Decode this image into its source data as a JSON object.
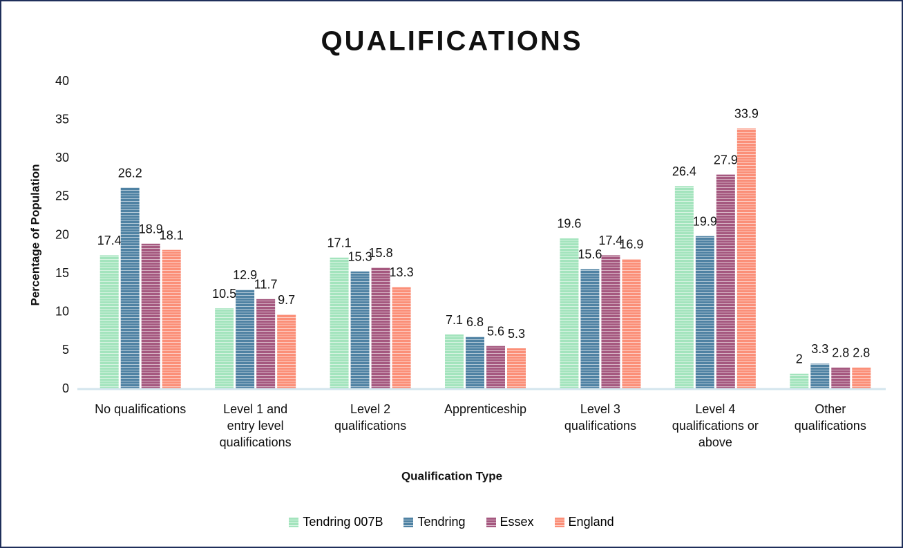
{
  "chart_data": {
    "type": "bar",
    "title": "QUALIFICATIONS",
    "x_label": "Qualification Type",
    "y_label": "Percentage of Population",
    "categories": [
      "No qualifications",
      "Level 1 and\nentry level\nqualifications",
      "Level 2\nqualifications",
      "Apprenticeship",
      "Level 3\nqualifications",
      "Level 4\nqualifications or\nabove",
      "Other\nqualifications"
    ],
    "series": [
      {
        "name": "Tendring 007B",
        "color": "#a3e4bd",
        "values": [
          17.4,
          10.5,
          17.1,
          7.1,
          19.6,
          26.4,
          2
        ]
      },
      {
        "name": "Tendring",
        "color": "#4f82a3",
        "values": [
          26.2,
          12.9,
          15.3,
          6.8,
          15.6,
          19.9,
          3.3
        ]
      },
      {
        "name": "Essex",
        "color": "#a5587f",
        "values": [
          18.9,
          11.7,
          15.8,
          5.6,
          17.4,
          27.9,
          2.8
        ]
      },
      {
        "name": "England",
        "color": "#fb8f78",
        "values": [
          18.1,
          9.7,
          13.3,
          5.3,
          16.9,
          33.9,
          2.8
        ]
      }
    ],
    "ylim": [
      0,
      40
    ],
    "yticks": [
      0,
      5,
      10,
      15,
      20,
      25,
      30,
      35,
      40
    ],
    "grid": false,
    "legend": "bottom"
  }
}
